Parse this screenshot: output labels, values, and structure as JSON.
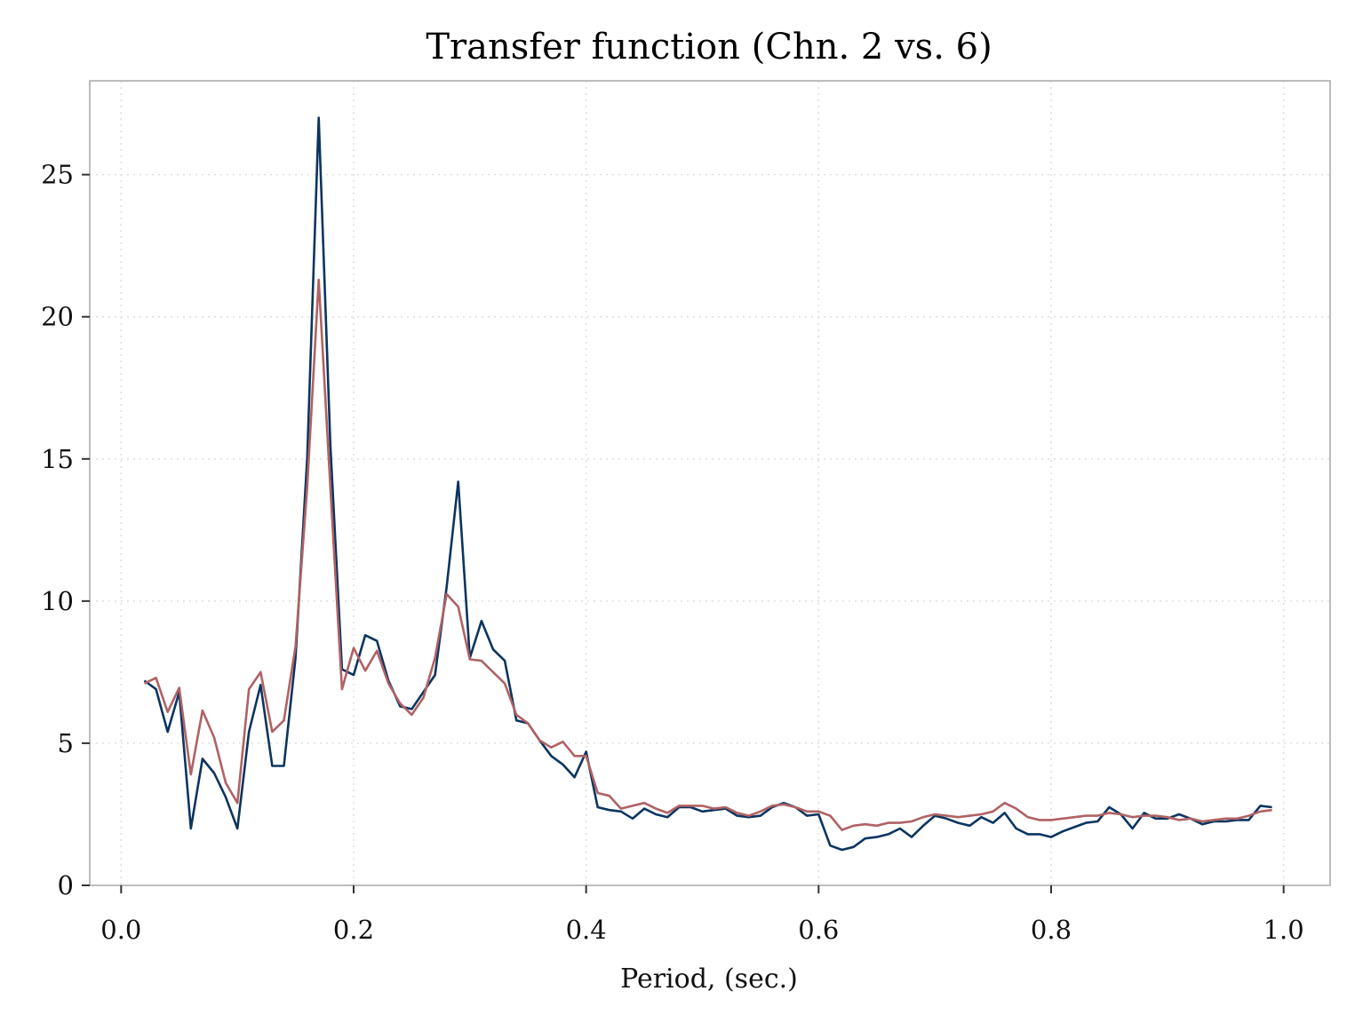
{
  "chart_data": {
    "type": "line",
    "title": "Transfer function (Chn. 2 vs. 6)",
    "xlabel": "Period, (sec.)",
    "ylabel": "",
    "xlim": [
      -0.027,
      1.04
    ],
    "ylim": [
      0,
      28.3
    ],
    "xticks": [
      0.0,
      0.2,
      0.4,
      0.6,
      0.8,
      1.0
    ],
    "xtick_labels": [
      "0.0",
      "0.2",
      "0.4",
      "0.6",
      "0.8",
      "1.0"
    ],
    "yticks": [
      0,
      5,
      10,
      15,
      20,
      25
    ],
    "ytick_labels": [
      "0",
      "5",
      "10",
      "15",
      "20",
      "25"
    ],
    "grid": true,
    "legend": "none",
    "x": [
      0.02,
      0.03,
      0.04,
      0.05,
      0.06,
      0.07,
      0.08,
      0.09,
      0.1,
      0.11,
      0.12,
      0.13,
      0.14,
      0.15,
      0.16,
      0.17,
      0.18,
      0.19,
      0.2,
      0.21,
      0.22,
      0.23,
      0.24,
      0.25,
      0.26,
      0.27,
      0.28,
      0.29,
      0.3,
      0.31,
      0.32,
      0.33,
      0.34,
      0.35,
      0.36,
      0.37,
      0.38,
      0.39,
      0.4,
      0.41,
      0.42,
      0.43,
      0.44,
      0.45,
      0.46,
      0.47,
      0.48,
      0.49,
      0.5,
      0.51,
      0.52,
      0.53,
      0.54,
      0.55,
      0.56,
      0.57,
      0.58,
      0.59,
      0.6,
      0.61,
      0.62,
      0.63,
      0.64,
      0.65,
      0.66,
      0.67,
      0.68,
      0.69,
      0.7,
      0.71,
      0.72,
      0.73,
      0.74,
      0.75,
      0.76,
      0.77,
      0.78,
      0.79,
      0.8,
      0.81,
      0.82,
      0.83,
      0.84,
      0.85,
      0.86,
      0.87,
      0.88,
      0.89,
      0.9,
      0.91,
      0.92,
      0.93,
      0.94,
      0.95,
      0.96,
      0.97,
      0.98,
      0.99
    ],
    "series": [
      {
        "color": "#0b3560",
        "values": [
          7.2,
          6.9,
          5.4,
          6.8,
          2.0,
          4.45,
          3.95,
          3.1,
          2.0,
          5.4,
          7.05,
          4.2,
          4.2,
          8.0,
          15.0,
          27.0,
          15.5,
          7.6,
          7.4,
          8.8,
          8.6,
          7.2,
          6.3,
          6.2,
          6.8,
          7.4,
          10.5,
          14.2,
          8.0,
          9.3,
          8.3,
          7.9,
          5.8,
          5.7,
          5.1,
          4.55,
          4.25,
          3.8,
          4.7,
          2.75,
          2.65,
          2.6,
          2.35,
          2.7,
          2.5,
          2.4,
          2.75,
          2.75,
          2.6,
          2.65,
          2.7,
          2.45,
          2.4,
          2.45,
          2.75,
          2.9,
          2.75,
          2.45,
          2.5,
          1.4,
          1.25,
          1.35,
          1.65,
          1.7,
          1.8,
          2.0,
          1.7,
          2.1,
          2.45,
          2.35,
          2.2,
          2.1,
          2.4,
          2.2,
          2.55,
          2.0,
          1.8,
          1.8,
          1.7,
          1.9,
          2.05,
          2.2,
          2.25,
          2.75,
          2.5,
          2.0,
          2.55,
          2.35,
          2.35,
          2.5,
          2.35,
          2.15,
          2.25,
          2.25,
          2.3,
          2.3,
          2.8,
          2.75
        ]
      },
      {
        "color": "#b06264",
        "values": [
          7.1,
          7.3,
          6.1,
          6.95,
          3.9,
          6.15,
          5.2,
          3.6,
          2.9,
          6.9,
          7.5,
          5.4,
          5.8,
          8.4,
          14.0,
          21.3,
          14.0,
          6.9,
          8.35,
          7.55,
          8.25,
          7.1,
          6.4,
          6.0,
          6.6,
          8.0,
          10.25,
          9.8,
          7.95,
          7.9,
          7.5,
          7.1,
          6.0,
          5.7,
          5.1,
          4.85,
          5.05,
          4.55,
          4.55,
          3.25,
          3.15,
          2.7,
          2.8,
          2.9,
          2.7,
          2.55,
          2.8,
          2.8,
          2.8,
          2.7,
          2.75,
          2.55,
          2.45,
          2.6,
          2.8,
          2.85,
          2.75,
          2.6,
          2.6,
          2.45,
          1.95,
          2.1,
          2.15,
          2.1,
          2.2,
          2.2,
          2.25,
          2.4,
          2.5,
          2.45,
          2.4,
          2.45,
          2.5,
          2.6,
          2.9,
          2.7,
          2.4,
          2.3,
          2.3,
          2.35,
          2.4,
          2.45,
          2.45,
          2.55,
          2.5,
          2.4,
          2.45,
          2.45,
          2.4,
          2.3,
          2.35,
          2.25,
          2.3,
          2.35,
          2.35,
          2.45,
          2.6,
          2.65
        ]
      }
    ]
  }
}
